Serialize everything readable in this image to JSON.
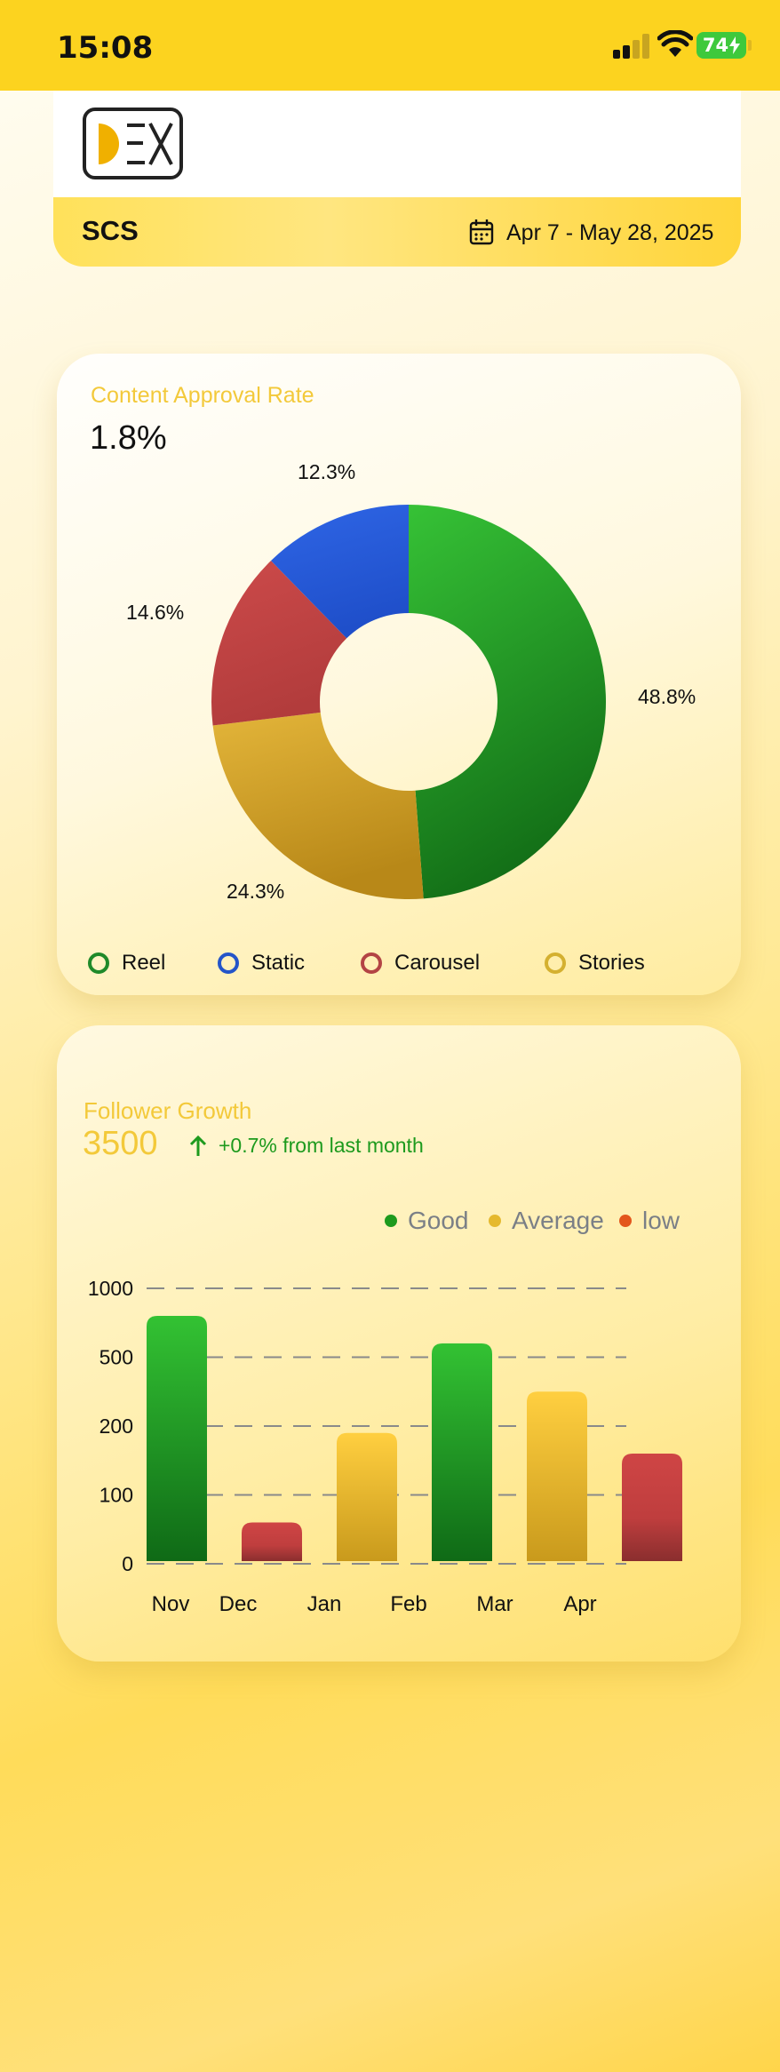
{
  "status_bar": {
    "time": "15:08",
    "battery": "74",
    "signal_bars_active": 2,
    "colors": {
      "background": "#fcd31f",
      "battery": "#3ec93c"
    }
  },
  "header": {
    "account": "SCS",
    "date_range": "Apr 7 - May 28, 2025",
    "logo_icon": "dex-logo"
  },
  "approval": {
    "title": "Content Approval Rate",
    "value": "1.8%",
    "chart_data": {
      "type": "pie",
      "donut": true,
      "slices": [
        {
          "name": "Reel",
          "value": 48.8,
          "label": "48.8%",
          "color": "#2aa32a"
        },
        {
          "name": "Stories",
          "value": 24.3,
          "label": "24.3%",
          "color": "#cf9f2a"
        },
        {
          "name": "Carousel",
          "value": 14.6,
          "label": "14.6%",
          "color": "#c24444"
        },
        {
          "name": "Static",
          "value": 12.3,
          "label": "12.3%",
          "color": "#2b5ad6"
        }
      ]
    },
    "legend": [
      {
        "label": "Reel",
        "color": "#1f8a2a"
      },
      {
        "label": "Static",
        "color": "#2455c9"
      },
      {
        "label": "Carousel",
        "color": "#b34444"
      },
      {
        "label": "Stories",
        "color": "#d4b030"
      }
    ]
  },
  "follower": {
    "title": "Follower Growth",
    "value": "3500",
    "growth_text": "+0.7% from last month",
    "legend": [
      {
        "label": "Good",
        "color": "#1d9a1d"
      },
      {
        "label": "Average",
        "color": "#e5b92e"
      },
      {
        "label": "low",
        "color": "#e3561c"
      }
    ],
    "chart_data": {
      "type": "bar",
      "y_scale": "categorical-ticks",
      "y_ticks": [
        "0",
        "100",
        "200",
        "500",
        "1000"
      ],
      "categories": [
        "Nov",
        "Dec",
        "Jan",
        "Feb",
        "Mar",
        "Apr"
      ],
      "bars": [
        {
          "value": 800,
          "status": "Good"
        },
        {
          "value": 60,
          "status": "low"
        },
        {
          "value": 190,
          "status": "Average"
        },
        {
          "value": 600,
          "status": "Good"
        },
        {
          "value": 350,
          "status": "Average"
        },
        {
          "value": 160,
          "status": "low"
        }
      ],
      "grid": true,
      "grid_style": "dashed",
      "legend_position": "top-right"
    }
  }
}
